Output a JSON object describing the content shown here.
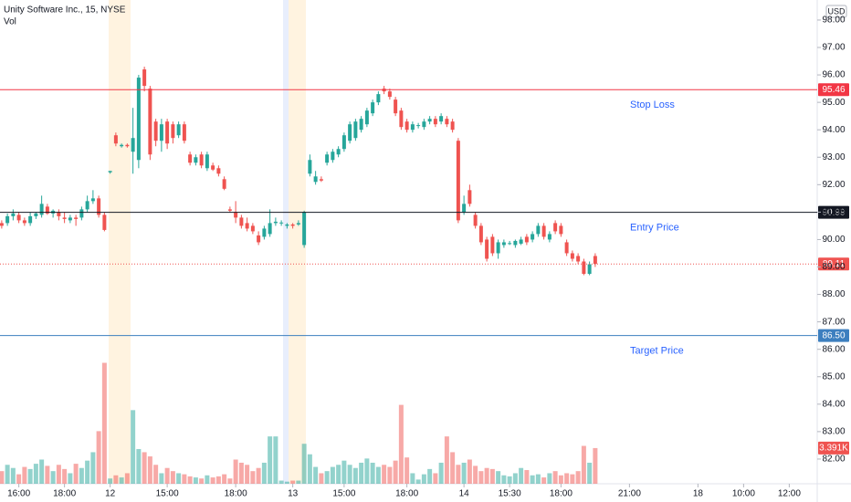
{
  "chart_data": {
    "type": "candlestick",
    "title": "Unity Software Inc., 15, NYSE",
    "volume_title": "Vol",
    "currency": "USD",
    "colors": {
      "up": "#26a69a",
      "down": "#ef5350"
    },
    "open": [
      90.6,
      90.6,
      90.85,
      90.9,
      90.7,
      90.6,
      90.85,
      90.9,
      91.2,
      90.95,
      91.0,
      90.8,
      90.7,
      90.8,
      90.8,
      91.1,
      91.4,
      91.5,
      90.9,
      92.45,
      93.8,
      93.4,
      93.45,
      93.2,
      92.9,
      96.2,
      95.5,
      94.3,
      93.6,
      94.3,
      94.2,
      93.8,
      94.2,
      93.1,
      92.8,
      93.1,
      92.6,
      92.7,
      92.6,
      92.2,
      91.1,
      91.0,
      90.8,
      90.6,
      90.5,
      90.15,
      90.1,
      90.2,
      90.6,
      90.6,
      90.5,
      90.55,
      90.55,
      89.8,
      92.4,
      92.1,
      92.2,
      92.8,
      92.9,
      93.1,
      93.3,
      93.6,
      93.7,
      94.0,
      94.2,
      94.6,
      95.0,
      95.5,
      95.4,
      95.1,
      94.7,
      94.3,
      94.0,
      94.15,
      94.1,
      94.3,
      94.4,
      94.3,
      94.4,
      94.3,
      93.6,
      91.0,
      91.8,
      90.9,
      90.5,
      90.0,
      90.1,
      89.5,
      89.8,
      89.85,
      89.8,
      89.85,
      90.1,
      90.0,
      90.2,
      90.5,
      90.0,
      90.6,
      90.5,
      89.9,
      89.5,
      89.4,
      89.2,
      88.75,
      89.4
    ],
    "high": [
      90.7,
      90.95,
      91.1,
      91.0,
      90.8,
      91.0,
      91.0,
      91.6,
      91.3,
      91.1,
      91.1,
      91.0,
      90.9,
      90.9,
      91.2,
      91.6,
      91.8,
      91.6,
      91.0,
      92.5,
      93.9,
      93.5,
      93.5,
      94.8,
      96.0,
      96.3,
      95.6,
      94.4,
      94.4,
      94.4,
      94.3,
      94.3,
      94.3,
      93.2,
      93.1,
      93.2,
      93.2,
      92.8,
      92.7,
      92.3,
      91.2,
      91.4,
      90.9,
      90.8,
      90.6,
      90.3,
      90.5,
      91.1,
      90.8,
      90.7,
      90.6,
      90.6,
      90.7,
      91.05,
      93.1,
      92.5,
      92.3,
      93.2,
      93.3,
      93.4,
      93.9,
      94.3,
      94.4,
      94.5,
      94.8,
      95.1,
      95.4,
      95.6,
      95.5,
      95.2,
      94.8,
      94.4,
      94.3,
      94.25,
      94.4,
      94.5,
      94.5,
      94.6,
      94.5,
      94.4,
      93.7,
      91.6,
      92.0,
      91.0,
      90.6,
      90.1,
      90.2,
      90.0,
      90.0,
      89.95,
      90.0,
      90.1,
      90.2,
      90.3,
      90.6,
      90.6,
      90.3,
      90.7,
      90.6,
      90.0,
      89.6,
      89.5,
      89.3,
      89.2,
      89.5
    ],
    "low": [
      90.4,
      90.5,
      90.7,
      90.6,
      90.5,
      90.5,
      90.75,
      90.8,
      90.9,
      90.8,
      90.7,
      90.6,
      90.6,
      90.5,
      90.7,
      91.0,
      91.3,
      90.8,
      90.3,
      92.4,
      93.4,
      93.35,
      93.35,
      92.4,
      92.6,
      95.4,
      92.9,
      93.4,
      93.2,
      93.3,
      93.5,
      93.7,
      93.5,
      92.7,
      92.7,
      92.6,
      92.5,
      92.5,
      92.3,
      91.8,
      91.0,
      90.6,
      90.4,
      90.3,
      90.2,
      89.8,
      90.0,
      90.1,
      90.5,
      90.5,
      90.4,
      90.4,
      90.5,
      89.7,
      92.3,
      92.0,
      92.1,
      92.7,
      92.8,
      93.0,
      93.2,
      93.5,
      93.6,
      93.9,
      94.1,
      94.5,
      94.9,
      95.3,
      95.1,
      94.5,
      94.0,
      93.9,
      93.9,
      94.05,
      94.0,
      94.2,
      94.1,
      94.2,
      94.1,
      93.9,
      90.6,
      90.9,
      91.2,
      90.4,
      89.8,
      89.2,
      89.4,
      89.3,
      89.7,
      89.8,
      89.7,
      89.8,
      89.8,
      89.9,
      90.1,
      90.0,
      89.9,
      90.2,
      90.1,
      89.4,
      89.2,
      89.1,
      88.7,
      88.7,
      89.0
    ],
    "close": [
      90.5,
      90.85,
      90.95,
      90.7,
      90.6,
      90.85,
      90.95,
      91.3,
      90.95,
      91.05,
      90.85,
      90.75,
      90.8,
      90.75,
      91.1,
      91.4,
      91.5,
      90.9,
      90.35,
      92.5,
      93.5,
      93.45,
      93.4,
      93.7,
      95.9,
      95.6,
      93.1,
      93.6,
      94.2,
      93.5,
      93.7,
      94.2,
      93.6,
      92.8,
      93.0,
      92.7,
      93.1,
      92.55,
      92.4,
      91.85,
      91.05,
      90.8,
      90.5,
      90.4,
      90.3,
      89.9,
      90.4,
      90.6,
      90.65,
      90.62,
      90.55,
      90.5,
      90.6,
      91.0,
      92.9,
      92.3,
      92.15,
      93.1,
      93.2,
      93.3,
      93.8,
      94.2,
      94.3,
      94.4,
      94.7,
      95.0,
      95.3,
      95.4,
      95.2,
      94.6,
      94.1,
      94.0,
      94.2,
      94.17,
      94.3,
      94.4,
      94.2,
      94.5,
      94.2,
      94.0,
      90.7,
      91.3,
      91.3,
      90.5,
      89.9,
      89.3,
      89.5,
      89.9,
      89.9,
      89.87,
      89.95,
      90.0,
      89.9,
      90.2,
      90.5,
      90.1,
      90.2,
      90.3,
      90.2,
      89.5,
      89.3,
      89.2,
      88.75,
      89.1,
      89.11
    ],
    "volume": [
      1.2,
      1.8,
      1.5,
      0.9,
      1.6,
      1.4,
      1.9,
      2.3,
      1.7,
      1.2,
      1.8,
      1.4,
      1.0,
      1.9,
      1.5,
      2.2,
      3.0,
      5.0,
      11.5,
      0.5,
      0.8,
      0.6,
      1.0,
      7.0,
      3.3,
      3.0,
      2.6,
      1.8,
      1.0,
      1.5,
      1.2,
      1.0,
      0.9,
      0.7,
      0.6,
      0.5,
      0.8,
      0.6,
      0.7,
      0.9,
      0.5,
      2.3,
      2.0,
      1.8,
      1.2,
      1.5,
      2.0,
      4.5,
      4.5,
      0.3,
      0.2,
      0.3,
      0.3,
      3.8,
      2.8,
      1.6,
      1.0,
      1.2,
      1.6,
      1.8,
      2.2,
      1.8,
      1.5,
      2.0,
      2.4,
      2.0,
      1.6,
      1.8,
      1.6,
      2.2,
      7.5,
      2.5,
      1.0,
      0.4,
      0.9,
      1.4,
      1.0,
      2.0,
      4.5,
      3.0,
      1.8,
      2.0,
      2.3,
      1.7,
      1.2,
      1.5,
      1.4,
      1.2,
      0.8,
      0.7,
      1.0,
      1.5,
      1.3,
      0.8,
      0.9,
      0.6,
      1.0,
      1.2,
      0.8,
      1.0,
      0.9,
      1.2,
      3.6,
      2.0,
      3.391
    ],
    "volume_label": {
      "value": 3.391,
      "label": "3.391K"
    },
    "xlim": [
      -0.3,
      142.9
    ],
    "xticks": [
      {
        "value": 3,
        "label": "16:00"
      },
      {
        "value": 11,
        "label": "18:00"
      },
      {
        "value": 19,
        "label": "12"
      },
      {
        "value": 29,
        "label": "15:00"
      },
      {
        "value": 41,
        "label": "18:00"
      },
      {
        "value": 51,
        "label": "13"
      },
      {
        "value": 60,
        "label": "15:00"
      },
      {
        "value": 71,
        "label": "18:00"
      },
      {
        "value": 81,
        "label": "14"
      },
      {
        "value": 89,
        "label": "15:30"
      },
      {
        "value": 98,
        "label": "18:00"
      },
      {
        "value": 110,
        "label": "21:00"
      },
      {
        "value": 122,
        "label": "18"
      },
      {
        "value": 130,
        "label": "10:00"
      },
      {
        "value": 138,
        "label": "12:00"
      }
    ],
    "ylim": [
      81.1,
      98.73
    ],
    "yticks": [
      {
        "value": 98,
        "label": "98.00"
      },
      {
        "value": 97,
        "label": "97.00"
      },
      {
        "value": 96,
        "label": "96.00"
      },
      {
        "value": 95,
        "label": "95.00"
      },
      {
        "value": 94,
        "label": "94.00"
      },
      {
        "value": 93,
        "label": "93.00"
      },
      {
        "value": 92,
        "label": "92.00"
      },
      {
        "value": 91,
        "label": "91.00"
      },
      {
        "value": 90,
        "label": "90.00"
      },
      {
        "value": 89,
        "label": "89.00"
      },
      {
        "value": 88,
        "label": "88.00"
      },
      {
        "value": 87,
        "label": "87.00"
      },
      {
        "value": 86,
        "label": "86.00"
      },
      {
        "value": 85,
        "label": "85.00"
      },
      {
        "value": 84,
        "label": "84.00"
      },
      {
        "value": 83,
        "label": "83.00"
      },
      {
        "value": 82,
        "label": "82.00"
      }
    ],
    "y2lim": [
      0,
      46
    ],
    "last_price": {
      "value": 89.11,
      "label": "89.11",
      "color": "#ef5350"
    },
    "levels": [
      {
        "name": "Stop Loss",
        "value": 95.46,
        "label": "95.46",
        "color": "#f23645"
      },
      {
        "name": "Entry Price",
        "value": 90.99,
        "label": "90.99",
        "color": "#131722"
      },
      {
        "name": "Target Price",
        "value": 86.5,
        "label": "86.50",
        "color": "#3d7fbf"
      }
    ]
  }
}
